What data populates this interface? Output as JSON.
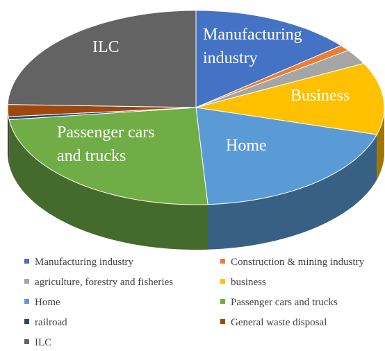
{
  "chart_data": {
    "type": "pie3d",
    "categories": [
      "Manufacturing industry",
      "Construction & mining industry",
      "agriculture, forestry and fisheries",
      "business",
      "Home",
      "Passenger cars and trucks",
      "railroad",
      "General waste disposal",
      "ILC"
    ],
    "values": [
      14,
      1,
      2.5,
      12,
      19.5,
      24,
      0.5,
      2,
      24.5
    ],
    "colors": [
      "#4472c4",
      "#ed7d31",
      "#a5a5a5",
      "#ffc000",
      "#5b9bd5",
      "#70ad47",
      "#264478",
      "#9e480e",
      "#636363"
    ],
    "data_labels": [
      "Manufacturing industry",
      null,
      null,
      "Business",
      "Home",
      "Passenger cars and trucks",
      null,
      null,
      "ILC"
    ],
    "legend": "bottom"
  }
}
